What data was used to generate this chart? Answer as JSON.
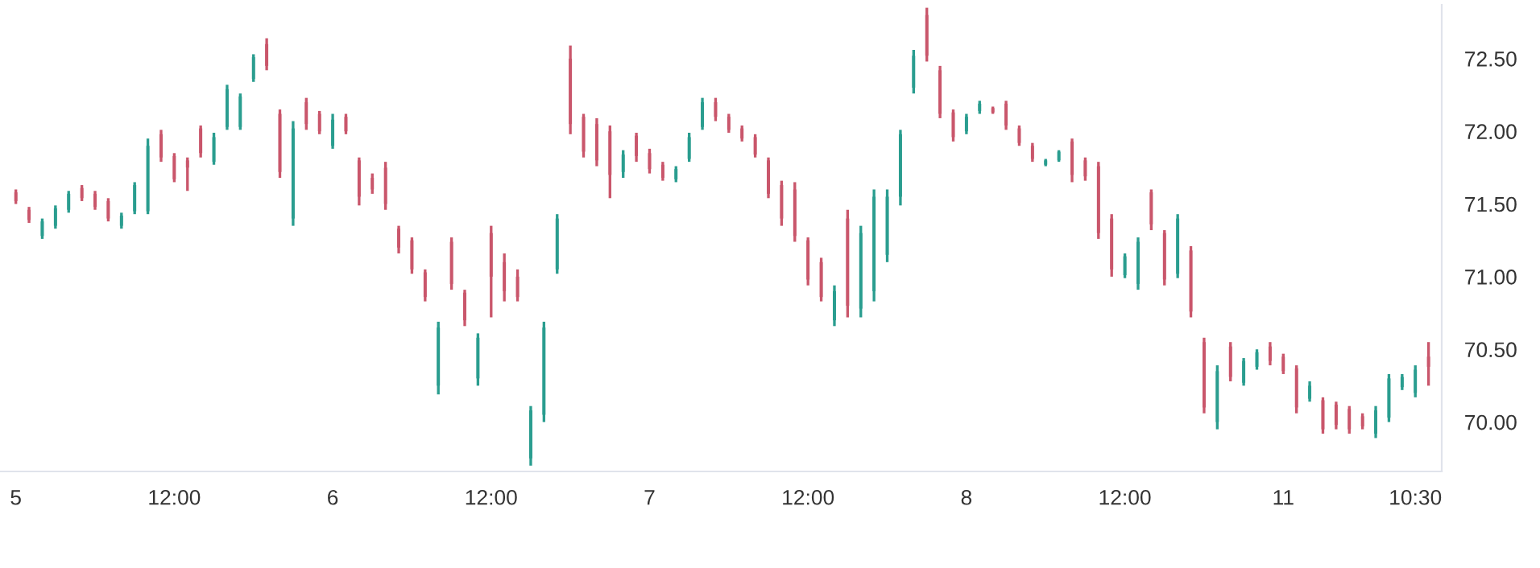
{
  "chart_data": {
    "type": "candlestick",
    "categories": [
      "5",
      null,
      null,
      null,
      null,
      null,
      null,
      null,
      null,
      null,
      null,
      null,
      "12:00",
      null,
      null,
      null,
      null,
      null,
      null,
      null,
      null,
      null,
      null,
      null,
      "6",
      null,
      null,
      null,
      null,
      null,
      null,
      null,
      null,
      null,
      null,
      null,
      "12:00",
      null,
      null,
      null,
      null,
      null,
      null,
      null,
      null,
      null,
      null,
      null,
      "7",
      null,
      null,
      null,
      null,
      null,
      null,
      null,
      null,
      null,
      null,
      null,
      "12:00",
      null,
      null,
      null,
      null,
      null,
      null,
      null,
      null,
      null,
      null,
      null,
      "8",
      null,
      null,
      null,
      null,
      null,
      null,
      null,
      null,
      null,
      null,
      null,
      "12:00",
      null,
      null,
      null,
      null,
      null,
      null,
      null,
      null,
      null,
      null,
      null,
      "11",
      null,
      null,
      null,
      null,
      null,
      null,
      null,
      null,
      null,
      "10:30",
      null
    ],
    "ohlc": [
      [
        71.58,
        71.6,
        71.5,
        71.52
      ],
      [
        71.46,
        71.48,
        71.37,
        71.39
      ],
      [
        71.28,
        71.4,
        71.26,
        71.38
      ],
      [
        71.35,
        71.49,
        71.33,
        71.47
      ],
      [
        71.46,
        71.59,
        71.44,
        71.57
      ],
      [
        71.61,
        71.63,
        71.52,
        71.54
      ],
      [
        71.57,
        71.59,
        71.46,
        71.48
      ],
      [
        71.52,
        71.54,
        71.38,
        71.4
      ],
      [
        71.35,
        71.44,
        71.33,
        71.42
      ],
      [
        71.45,
        71.65,
        71.43,
        71.63
      ],
      [
        71.45,
        71.95,
        71.43,
        71.9
      ],
      [
        71.98,
        72.01,
        71.79,
        71.82
      ],
      [
        71.83,
        71.85,
        71.65,
        71.67
      ],
      [
        71.8,
        71.82,
        71.59,
        71.75
      ],
      [
        72.02,
        72.04,
        71.82,
        71.85
      ],
      [
        71.79,
        71.99,
        71.77,
        71.96
      ],
      [
        72.03,
        72.32,
        72.01,
        72.29
      ],
      [
        72.03,
        72.26,
        72.01,
        72.24
      ],
      [
        72.36,
        72.53,
        72.34,
        72.51
      ],
      [
        72.6,
        72.64,
        72.42,
        72.45
      ],
      [
        72.12,
        72.15,
        71.68,
        71.72
      ],
      [
        71.4,
        72.07,
        71.35,
        72.02
      ],
      [
        72.2,
        72.23,
        72.01,
        72.05
      ],
      [
        72.12,
        72.14,
        71.98,
        72.0
      ],
      [
        71.9,
        72.12,
        71.88,
        72.08
      ],
      [
        72.1,
        72.12,
        71.98,
        72.0
      ],
      [
        71.8,
        71.82,
        71.49,
        71.55
      ],
      [
        71.68,
        71.71,
        71.57,
        71.6
      ],
      [
        71.75,
        71.79,
        71.46,
        71.5
      ],
      [
        71.33,
        71.35,
        71.16,
        71.2
      ],
      [
        71.25,
        71.27,
        71.02,
        71.05
      ],
      [
        71.03,
        71.05,
        70.83,
        70.86
      ],
      [
        70.25,
        70.69,
        70.19,
        70.65
      ],
      [
        71.24,
        71.27,
        70.91,
        70.95
      ],
      [
        70.89,
        70.91,
        70.66,
        70.7
      ],
      [
        70.3,
        70.61,
        70.25,
        70.58
      ],
      [
        71.3,
        71.35,
        70.72,
        71.0
      ],
      [
        71.1,
        71.16,
        70.83,
        70.9
      ],
      [
        71.0,
        71.05,
        70.83,
        70.86
      ],
      [
        69.75,
        70.11,
        69.7,
        70.08
      ],
      [
        70.05,
        70.69,
        70.0,
        70.65
      ],
      [
        71.05,
        71.43,
        71.02,
        71.4
      ],
      [
        72.5,
        72.59,
        71.98,
        72.05
      ],
      [
        72.1,
        72.12,
        71.82,
        71.86
      ],
      [
        72.05,
        72.09,
        71.76,
        71.8
      ],
      [
        72.0,
        72.04,
        71.54,
        71.7
      ],
      [
        71.72,
        71.87,
        71.68,
        71.84
      ],
      [
        71.97,
        71.99,
        71.79,
        71.83
      ],
      [
        71.85,
        71.88,
        71.71,
        71.74
      ],
      [
        71.77,
        71.79,
        71.66,
        71.68
      ],
      [
        71.67,
        71.76,
        71.65,
        71.74
      ],
      [
        71.81,
        71.99,
        71.79,
        71.96
      ],
      [
        72.03,
        72.23,
        72.01,
        72.2
      ],
      [
        72.2,
        72.23,
        72.07,
        72.1
      ],
      [
        72.1,
        72.12,
        71.99,
        72.01
      ],
      [
        72.02,
        72.04,
        71.93,
        71.95
      ],
      [
        71.96,
        71.98,
        71.82,
        71.84
      ],
      [
        71.8,
        71.82,
        71.54,
        71.57
      ],
      [
        71.63,
        71.66,
        71.35,
        71.4
      ],
      [
        71.6,
        71.65,
        71.24,
        71.28
      ],
      [
        71.25,
        71.27,
        70.94,
        70.98
      ],
      [
        71.1,
        71.13,
        70.83,
        70.86
      ],
      [
        70.7,
        70.94,
        70.66,
        70.9
      ],
      [
        71.4,
        71.46,
        70.72,
        70.8
      ],
      [
        70.78,
        71.35,
        70.72,
        71.3
      ],
      [
        70.9,
        71.6,
        70.83,
        71.55
      ],
      [
        71.15,
        71.6,
        71.1,
        71.55
      ],
      [
        71.55,
        72.01,
        71.49,
        71.98
      ],
      [
        72.3,
        72.56,
        72.26,
        72.52
      ],
      [
        72.8,
        72.85,
        72.48,
        72.52
      ],
      [
        72.42,
        72.45,
        72.09,
        72.12
      ],
      [
        72.13,
        72.15,
        71.93,
        71.96
      ],
      [
        72.0,
        72.12,
        71.98,
        72.1
      ],
      [
        72.14,
        72.21,
        72.12,
        72.19
      ],
      [
        72.16,
        72.17,
        72.12,
        72.13
      ],
      [
        72.19,
        72.21,
        72.01,
        72.04
      ],
      [
        72.02,
        72.04,
        71.9,
        71.92
      ],
      [
        71.9,
        71.92,
        71.79,
        71.81
      ],
      [
        71.77,
        71.81,
        71.76,
        71.8
      ],
      [
        71.8,
        71.87,
        71.79,
        71.86
      ],
      [
        71.93,
        71.95,
        71.65,
        71.7
      ],
      [
        71.8,
        71.82,
        71.66,
        71.69
      ],
      [
        71.76,
        71.79,
        71.26,
        71.3
      ],
      [
        71.4,
        71.43,
        71.0,
        71.05
      ],
      [
        71.01,
        71.16,
        70.99,
        71.14
      ],
      [
        70.95,
        71.27,
        70.91,
        71.24
      ],
      [
        71.58,
        71.6,
        71.32,
        71.36
      ],
      [
        71.3,
        71.32,
        70.94,
        70.98
      ],
      [
        71.02,
        71.43,
        70.99,
        71.4
      ],
      [
        71.18,
        71.21,
        70.72,
        70.76
      ],
      [
        70.55,
        70.58,
        70.06,
        70.1
      ],
      [
        70.0,
        70.39,
        69.95,
        70.35
      ],
      [
        70.52,
        70.55,
        70.28,
        70.31
      ],
      [
        70.27,
        70.44,
        70.25,
        70.42
      ],
      [
        70.38,
        70.5,
        70.36,
        70.48
      ],
      [
        70.52,
        70.55,
        70.39,
        70.42
      ],
      [
        70.45,
        70.47,
        70.33,
        70.35
      ],
      [
        70.37,
        70.39,
        70.06,
        70.1
      ],
      [
        70.16,
        70.28,
        70.14,
        70.25
      ],
      [
        70.15,
        70.17,
        69.92,
        69.95
      ],
      [
        70.12,
        70.14,
        69.95,
        69.98
      ],
      [
        70.09,
        70.11,
        69.92,
        69.95
      ],
      [
        70.04,
        70.06,
        69.95,
        69.97
      ],
      [
        69.92,
        70.11,
        69.89,
        70.08
      ],
      [
        70.03,
        70.33,
        70.0,
        70.3
      ],
      [
        70.24,
        70.33,
        70.22,
        70.31
      ],
      [
        70.2,
        70.39,
        70.17,
        70.36
      ],
      [
        70.45,
        70.55,
        70.25,
        70.38
      ]
    ],
    "ylim": [
      69.66,
      72.87
    ],
    "yticks": [
      {
        "value": 70,
        "label": "70.00"
      },
      {
        "value": 70.5,
        "label": "70.50"
      },
      {
        "value": 71,
        "label": "71.00"
      },
      {
        "value": 71.5,
        "label": "71.50"
      },
      {
        "value": 72,
        "label": "72.00"
      },
      {
        "value": 72.5,
        "label": "72.50"
      }
    ],
    "grid": false
  }
}
